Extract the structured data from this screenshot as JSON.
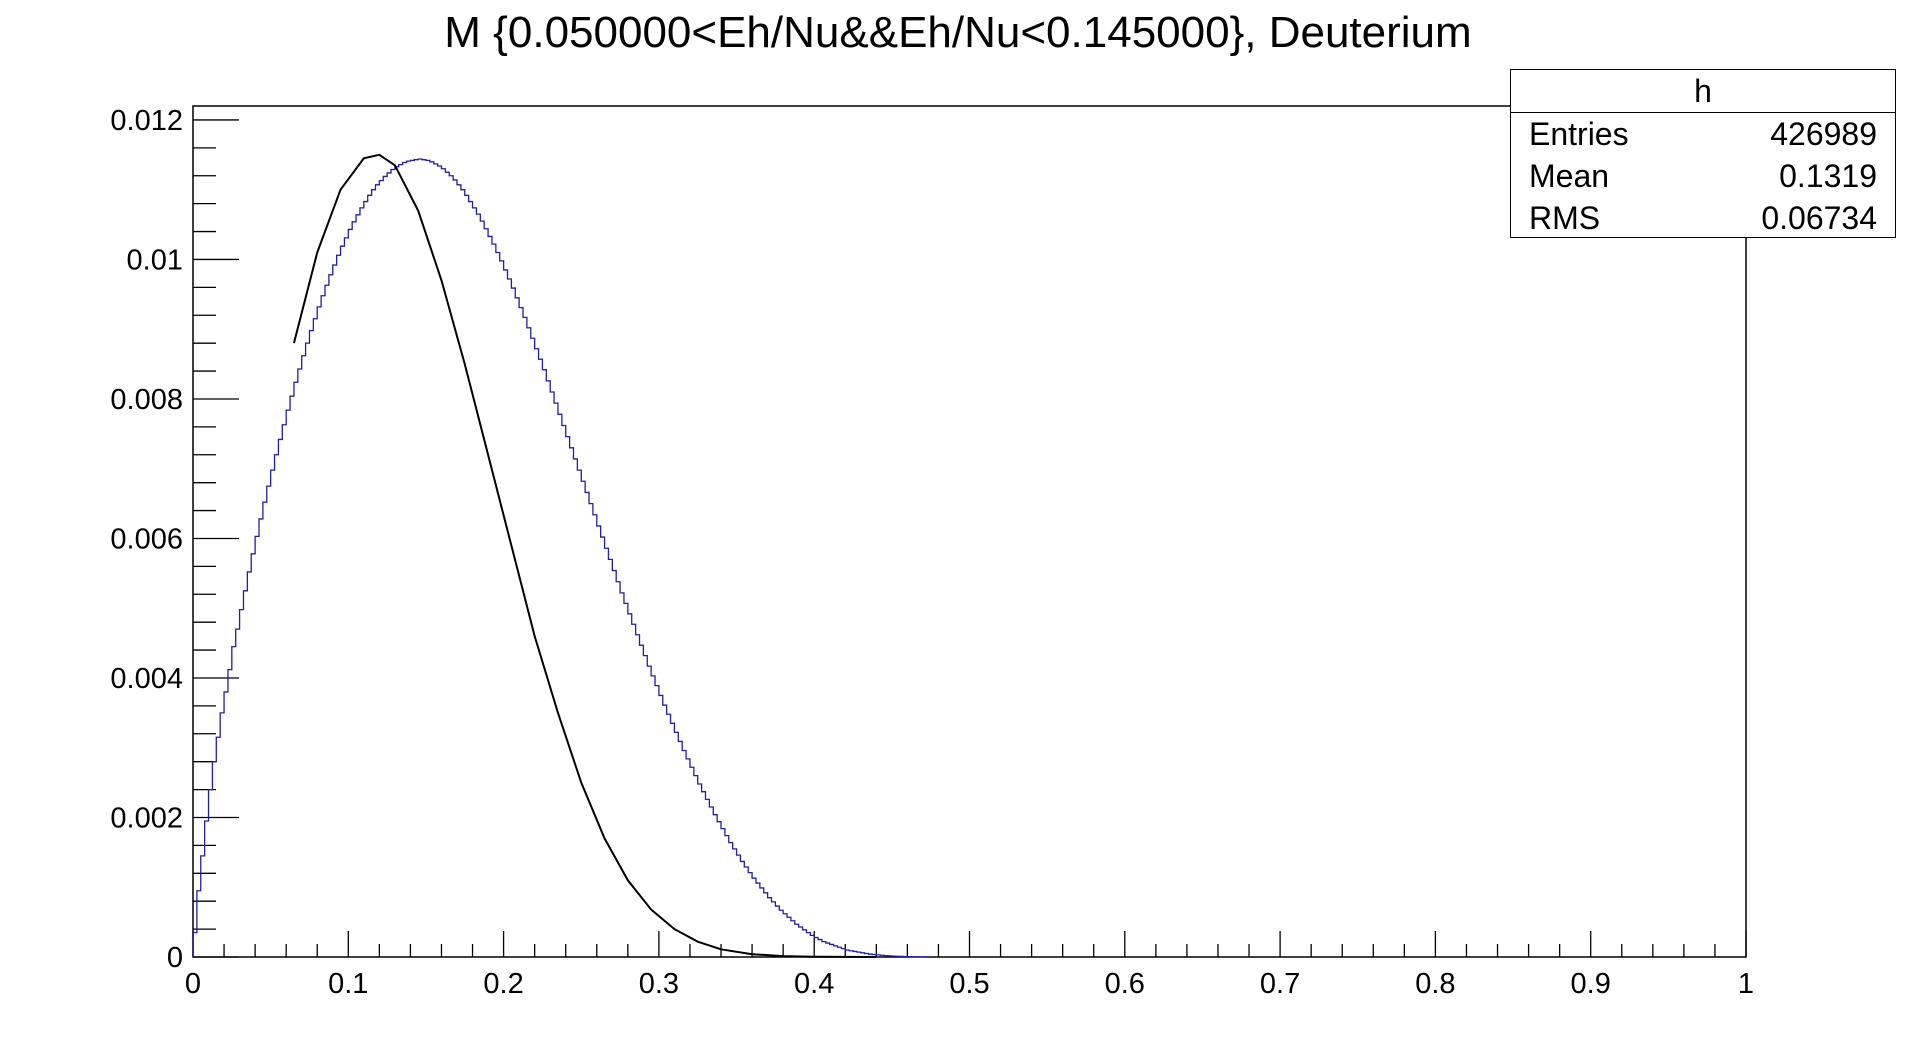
{
  "chart_data": {
    "type": "histogram",
    "title": "M {0.050000<Eh/Nu&&Eh/Nu<0.145000}, Deuterium",
    "xlabel": "",
    "ylabel": "",
    "xlim": [
      0,
      1
    ],
    "ylim": [
      0,
      0.0122
    ],
    "x_ticks": [
      "0",
      "0.1",
      "0.2",
      "0.3",
      "0.4",
      "0.5",
      "0.6",
      "0.7",
      "0.8",
      "0.9",
      "1"
    ],
    "y_ticks": [
      "0",
      "0.002",
      "0.004",
      "0.006",
      "0.008",
      "0.01",
      "0.012"
    ],
    "grid": false,
    "histogram": {
      "name": "h",
      "color": "#1f1fa8",
      "bin_width": 0.0025,
      "x_start": 0.0,
      "values": [
        0.00035,
        0.00095,
        0.00145,
        0.00195,
        0.0024,
        0.0028,
        0.00315,
        0.0035,
        0.0038,
        0.00412,
        0.00445,
        0.0047,
        0.00498,
        0.00525,
        0.00552,
        0.00578,
        0.00603,
        0.00628,
        0.00652,
        0.00675,
        0.00698,
        0.0072,
        0.00742,
        0.00763,
        0.00784,
        0.00804,
        0.00824,
        0.00843,
        0.00862,
        0.0088,
        0.00898,
        0.00915,
        0.00932,
        0.00948,
        0.00963,
        0.00978,
        0.00992,
        0.01006,
        0.01019,
        0.01031,
        0.01043,
        0.01054,
        0.01064,
        0.01074,
        0.01083,
        0.01092,
        0.011,
        0.01107,
        0.01113,
        0.01119,
        0.01124,
        0.01129,
        0.01133,
        0.01136,
        0.01139,
        0.01141,
        0.01142,
        0.01143,
        0.01144,
        0.01143,
        0.01142,
        0.0114,
        0.01137,
        0.01134,
        0.0113,
        0.01125,
        0.0112,
        0.01114,
        0.01107,
        0.011,
        0.01092,
        0.01083,
        0.01074,
        0.01065,
        0.01055,
        0.01044,
        0.01033,
        0.01022,
        0.0101,
        0.00998,
        0.00985,
        0.00972,
        0.00959,
        0.00945,
        0.00931,
        0.00917,
        0.00902,
        0.00887,
        0.00872,
        0.00857,
        0.00842,
        0.00826,
        0.0081,
        0.00794,
        0.00778,
        0.00762,
        0.00746,
        0.0073,
        0.00714,
        0.00698,
        0.00682,
        0.00666,
        0.0065,
        0.00634,
        0.00618,
        0.00602,
        0.00586,
        0.0057,
        0.00554,
        0.00538,
        0.00522,
        0.00507,
        0.00492,
        0.00477,
        0.00462,
        0.00447,
        0.00432,
        0.00417,
        0.00403,
        0.00389,
        0.00375,
        0.00361,
        0.00348,
        0.00335,
        0.00322,
        0.00309,
        0.00296,
        0.00284,
        0.00272,
        0.0026,
        0.00248,
        0.00237,
        0.00226,
        0.00215,
        0.00204,
        0.00194,
        0.00184,
        0.00174,
        0.00164,
        0.00155,
        0.00146,
        0.00137,
        0.00129,
        0.00121,
        0.00113,
        0.00106,
        0.00099,
        0.00092,
        0.00085,
        0.00079,
        0.00073,
        0.00067,
        0.00062,
        0.00057,
        0.00052,
        0.00047,
        0.00043,
        0.00039,
        0.00035,
        0.00031,
        0.00028,
        0.00025,
        0.00022,
        0.0002,
        0.00018,
        0.00016,
        0.00014,
        0.00012,
        0.0001,
        9e-05,
        8e-05,
        7e-05,
        6e-05,
        5e-05,
        4e-05,
        3.5e-05,
        3e-05,
        2.5e-05,
        2e-05,
        1.6e-05,
        1.3e-05,
        1e-05,
        8e-06,
        6e-06,
        5e-06,
        4e-06,
        3e-06,
        2e-06,
        2e-06,
        1e-06
      ]
    },
    "fit": {
      "color": "#000000",
      "x": [
        0.065,
        0.08,
        0.095,
        0.11,
        0.12,
        0.13,
        0.145,
        0.16,
        0.175,
        0.19,
        0.205,
        0.22,
        0.235,
        0.25,
        0.265,
        0.28,
        0.295,
        0.31,
        0.325,
        0.34,
        0.36,
        0.38,
        0.4,
        0.42,
        0.44
      ],
      "y": [
        0.0088,
        0.0101,
        0.011,
        0.01145,
        0.0115,
        0.01135,
        0.0107,
        0.0097,
        0.0085,
        0.0072,
        0.0059,
        0.0046,
        0.0035,
        0.0025,
        0.0017,
        0.0011,
        0.00068,
        0.0004,
        0.00022,
        0.00011,
        4e-05,
        1.3e-05,
        4e-06,
        1e-06,
        3e-07
      ]
    },
    "stats_box": {
      "name": "h",
      "rows": [
        {
          "label": "Entries",
          "value": "426989"
        },
        {
          "label": "Mean",
          "value": "0.1319"
        },
        {
          "label": "RMS",
          "value": "0.06734"
        }
      ]
    }
  }
}
